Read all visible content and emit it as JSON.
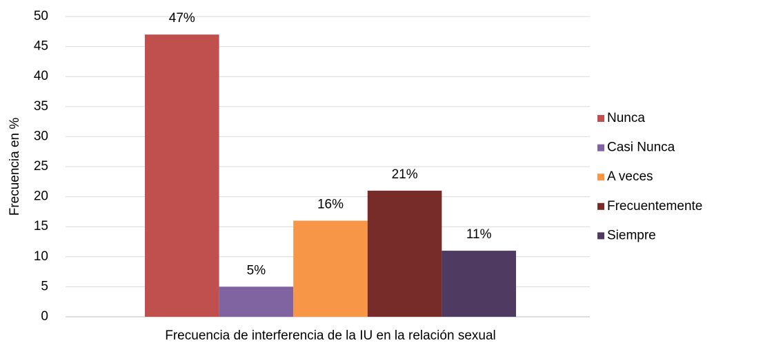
{
  "chart_data": {
    "type": "bar",
    "y_label": "Frecuencia en %",
    "categories": [
      "Frecuencia de interferencia de la IU en la relación sexual"
    ],
    "series": [
      {
        "name": "Nunca",
        "color": "#c0504d",
        "values": [
          47
        ],
        "value_labels": [
          "47%"
        ]
      },
      {
        "name": "Casi Nunca",
        "color": "#8064a2",
        "values": [
          5
        ],
        "value_labels": [
          "5%"
        ]
      },
      {
        "name": "A veces",
        "color": "#f79646",
        "values": [
          16
        ],
        "value_labels": [
          "16%"
        ]
      },
      {
        "name": "Frecuentemente",
        "color": "#772c2a",
        "values": [
          21
        ],
        "value_labels": [
          "21%"
        ]
      },
      {
        "name": "Siempre",
        "color": "#4f3b62",
        "values": [
          11
        ],
        "value_labels": [
          "11%"
        ]
      }
    ],
    "ylim": [
      0,
      50
    ],
    "yticks": [
      0,
      5,
      10,
      15,
      20,
      25,
      30,
      35,
      40,
      45,
      50
    ],
    "grid": true,
    "legend": "right"
  }
}
